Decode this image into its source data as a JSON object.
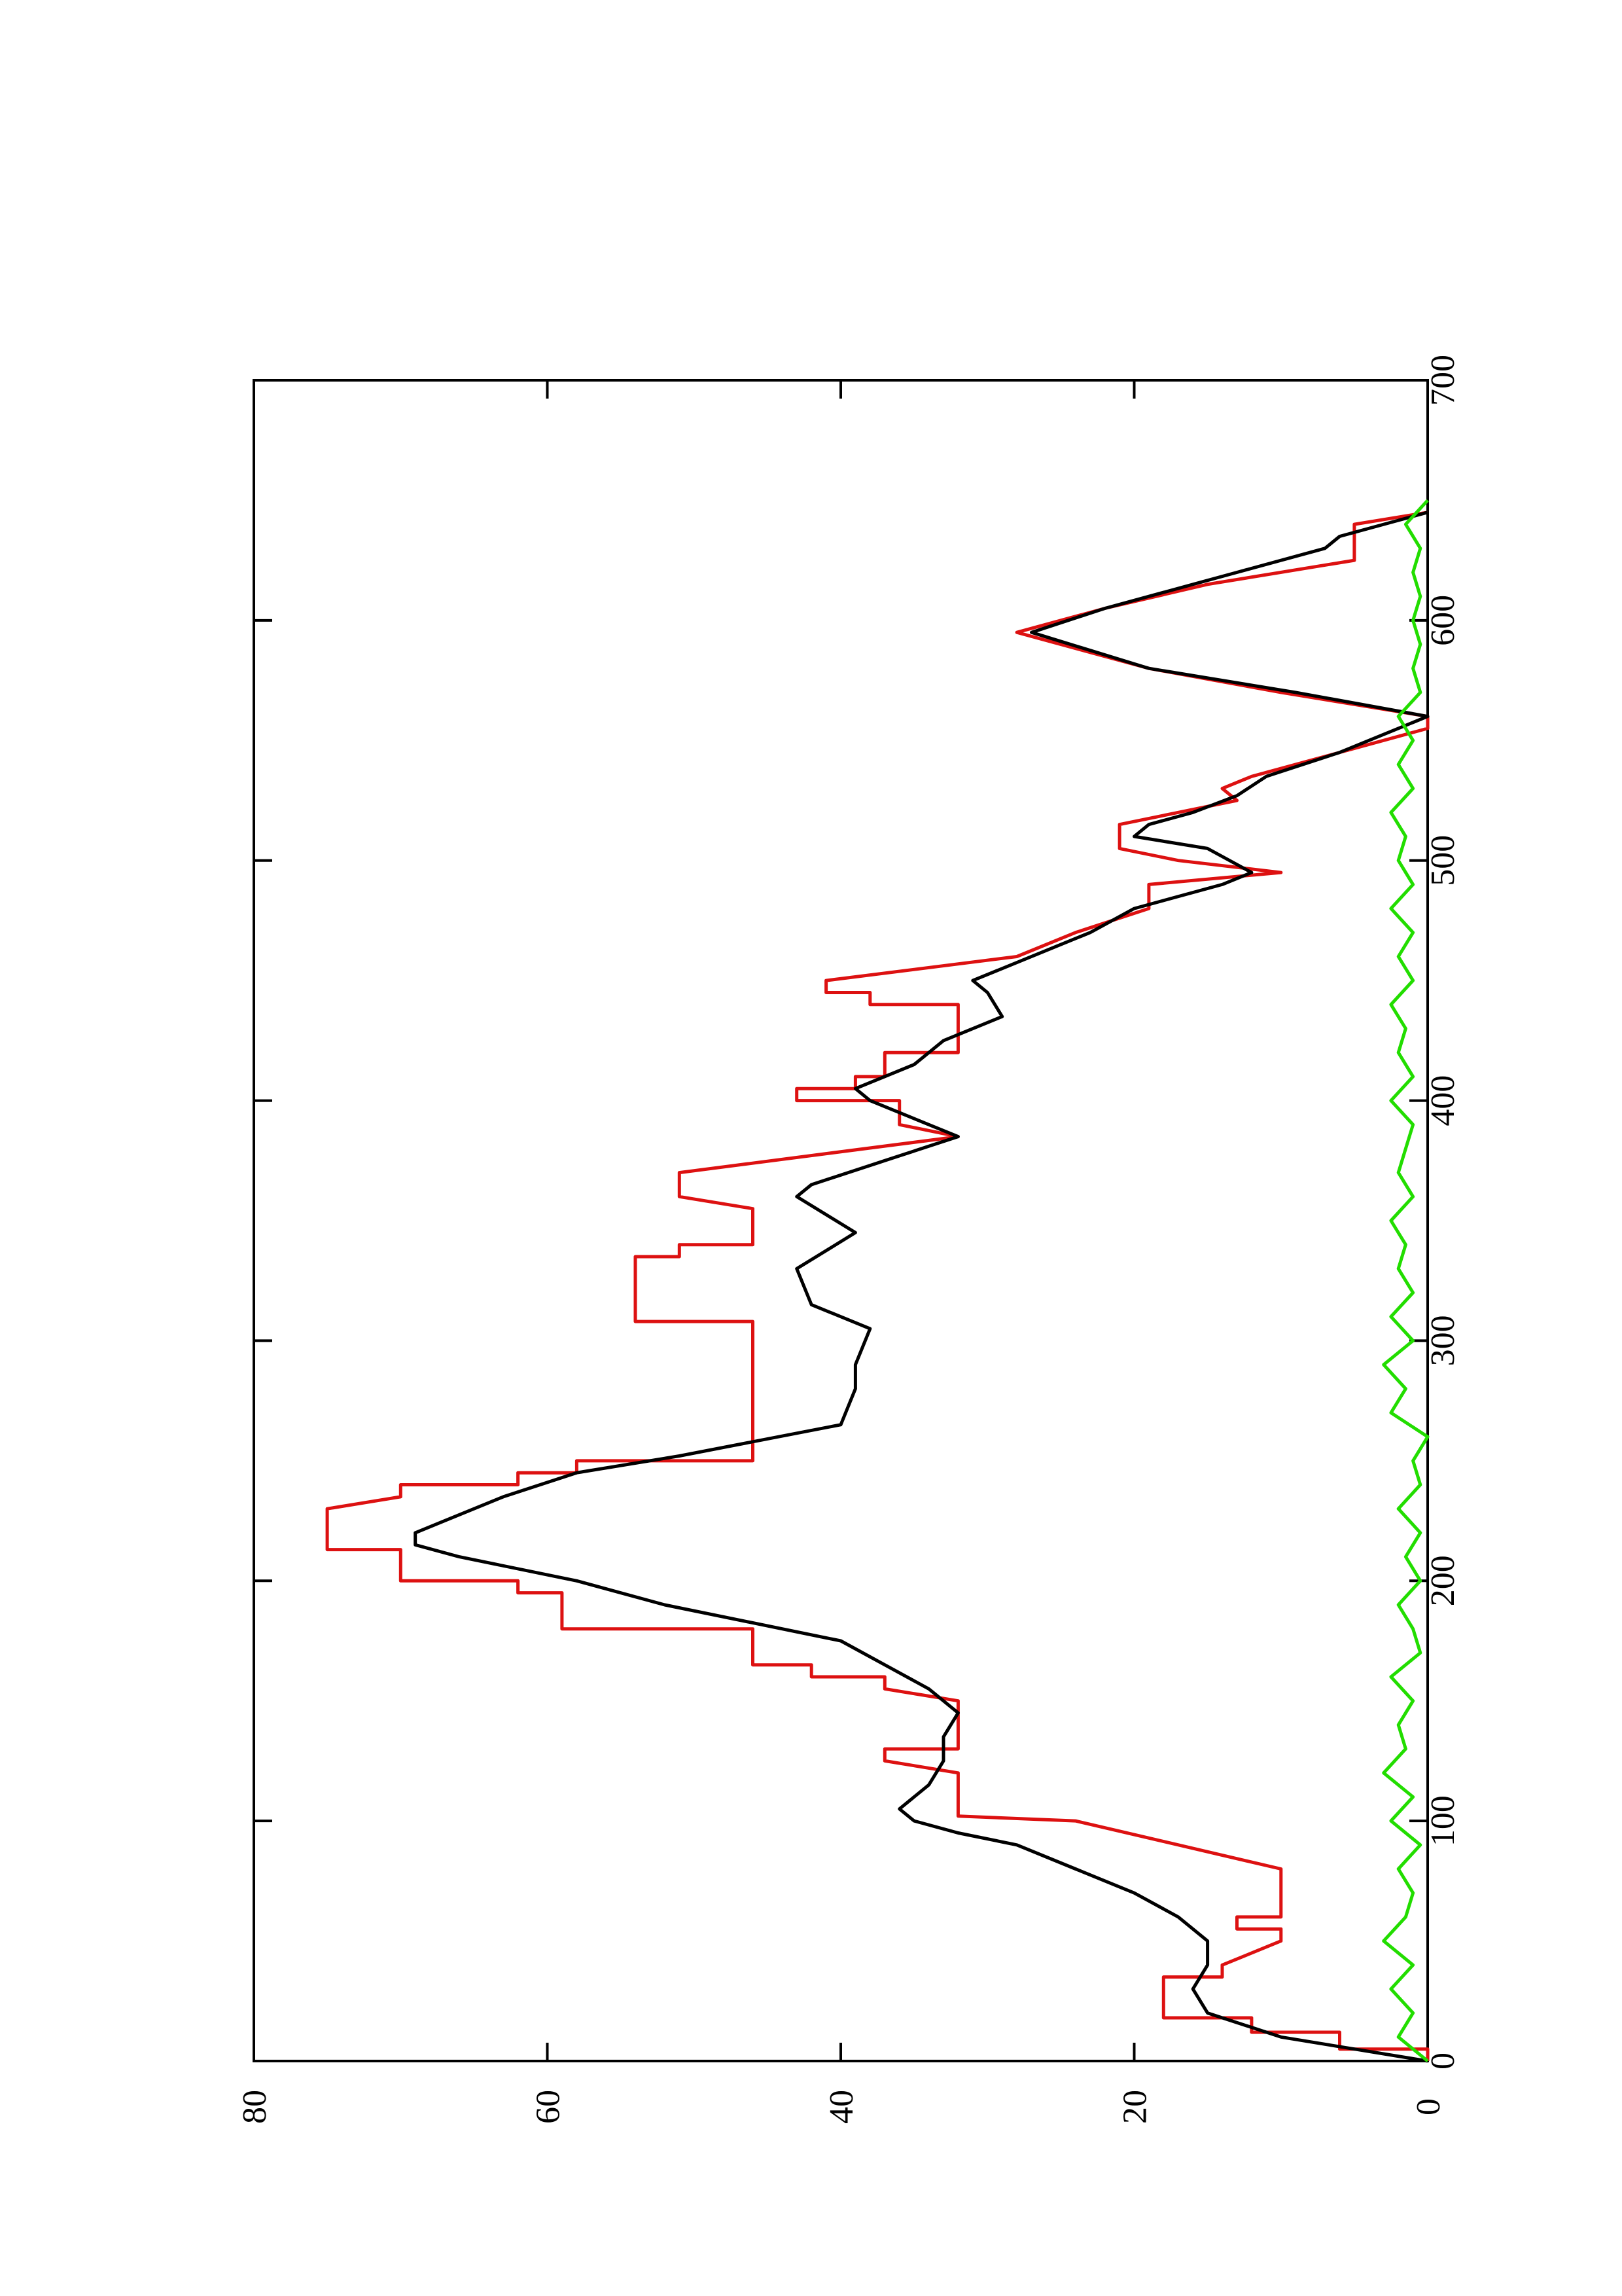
{
  "chart_data": {
    "type": "line",
    "xlim": [
      0,
      700
    ],
    "xticks": [
      0,
      100,
      200,
      300,
      400,
      500,
      600,
      700
    ],
    "ylim": [
      0,
      80
    ],
    "yticks": [
      0,
      20,
      40,
      60,
      80
    ],
    "series": [
      {
        "color": "#dd1111",
        "x": [
          0,
          5,
          5,
          12,
          12,
          18,
          18,
          35,
          35,
          40,
          40,
          50,
          50,
          55,
          55,
          60,
          60,
          80,
          80,
          100,
          100,
          102,
          102,
          120,
          120,
          125,
          125,
          130,
          130,
          150,
          150,
          155,
          155,
          160,
          160,
          165,
          165,
          175,
          175,
          180,
          180,
          195,
          195,
          200,
          200,
          205,
          205,
          213,
          213,
          230,
          230,
          235,
          235,
          240,
          240,
          245,
          245,
          250,
          250,
          265,
          265,
          308,
          308,
          335,
          335,
          340,
          340,
          355,
          355,
          360,
          360,
          370,
          385,
          390,
          390,
          400,
          400,
          405,
          405,
          410,
          410,
          415,
          415,
          420,
          420,
          425,
          425,
          440,
          440,
          445,
          445,
          450,
          460,
          470,
          470,
          480,
          480,
          490,
          495,
          500,
          500,
          505,
          505,
          515,
          520,
          525,
          525,
          530,
          530,
          535,
          535,
          545,
          555,
          560,
          570,
          580,
          595,
          605,
          615,
          625,
          625,
          640,
          645
        ],
        "values": [
          0,
          0,
          6,
          6,
          12,
          12,
          18,
          18,
          14,
          14,
          14,
          10,
          10,
          10,
          13,
          13,
          10,
          10,
          10,
          24,
          24,
          32,
          32,
          32,
          32,
          37,
          37,
          37,
          32,
          32,
          32,
          37,
          37,
          37,
          42,
          42,
          46,
          46,
          46,
          46,
          59,
          59,
          62,
          62,
          70,
          70,
          70,
          70,
          75,
          75,
          75,
          70,
          70,
          70,
          62,
          62,
          58,
          58,
          46,
          46,
          46,
          46,
          54,
          54,
          51,
          51,
          46,
          46,
          46,
          51,
          51,
          51,
          32,
          36,
          36,
          36,
          43,
          43,
          39,
          39,
          37,
          37,
          37,
          37,
          32,
          32,
          32,
          32,
          38,
          38,
          41,
          41,
          28,
          24,
          24,
          19,
          19,
          19,
          10,
          17,
          17,
          21,
          21,
          21,
          17,
          13,
          13,
          14,
          14,
          12,
          12,
          6,
          0,
          0,
          10,
          19,
          28,
          22,
          15,
          5,
          5,
          5,
          0
        ]
      },
      {
        "color": "#000000",
        "x": [
          0,
          5,
          10,
          20,
          30,
          40,
          50,
          60,
          70,
          80,
          90,
          95,
          100,
          105,
          115,
          125,
          135,
          145,
          155,
          165,
          175,
          190,
          200,
          210,
          215,
          220,
          225,
          235,
          245,
          252,
          265,
          280,
          290,
          305,
          315,
          330,
          345,
          360,
          365,
          375,
          385,
          390,
          400,
          405,
          415,
          425,
          435,
          445,
          450,
          465,
          470,
          480,
          490,
          495,
          505,
          510,
          515,
          520,
          527,
          535,
          545,
          560,
          570,
          580,
          595,
          605,
          620,
          630,
          635,
          645
        ],
        "values": [
          0,
          5,
          10,
          15,
          16,
          15,
          15,
          17,
          20,
          24,
          28,
          32,
          35,
          36,
          34,
          33,
          33,
          32,
          34,
          37,
          40,
          52,
          58,
          66,
          69,
          69,
          67,
          63,
          58,
          51,
          40,
          39,
          39,
          38,
          42,
          43,
          39,
          43,
          42,
          37,
          32,
          34,
          38,
          39,
          35,
          33,
          29,
          30,
          31,
          25,
          23,
          20,
          14,
          12,
          15,
          20,
          19,
          16,
          13,
          11,
          6,
          0,
          9,
          19,
          27,
          22,
          13,
          7,
          6,
          0
        ]
      },
      {
        "color": "#22dd00",
        "x": [
          0,
          10,
          20,
          30,
          40,
          50,
          60,
          70,
          80,
          90,
          100,
          110,
          120,
          130,
          140,
          150,
          160,
          170,
          180,
          190,
          200,
          210,
          220,
          230,
          240,
          250,
          260,
          270,
          280,
          290,
          300,
          310,
          320,
          330,
          340,
          350,
          360,
          370,
          380,
          390,
          400,
          410,
          420,
          430,
          440,
          450,
          460,
          470,
          480,
          490,
          500,
          510,
          520,
          530,
          540,
          550,
          560,
          570,
          580,
          590,
          600,
          610,
          620,
          630,
          640,
          650
        ],
        "values": [
          0,
          2,
          1,
          2.5,
          1,
          3,
          1.5,
          1,
          2,
          0.5,
          2.5,
          1,
          3,
          1.5,
          2,
          1,
          2.5,
          0.5,
          1,
          2,
          0.5,
          1.5,
          0.5,
          2,
          0.5,
          1,
          0,
          2.5,
          1.5,
          3,
          1,
          2.5,
          1,
          2,
          1.5,
          2.5,
          1,
          2,
          1.5,
          1,
          2.5,
          1,
          2,
          1.5,
          2.5,
          1,
          2,
          1,
          2.5,
          1,
          2,
          1.5,
          2.5,
          1,
          2,
          1,
          2,
          0.5,
          1,
          0.5,
          1,
          0.5,
          1,
          0.5,
          1.5,
          0
        ]
      }
    ]
  }
}
